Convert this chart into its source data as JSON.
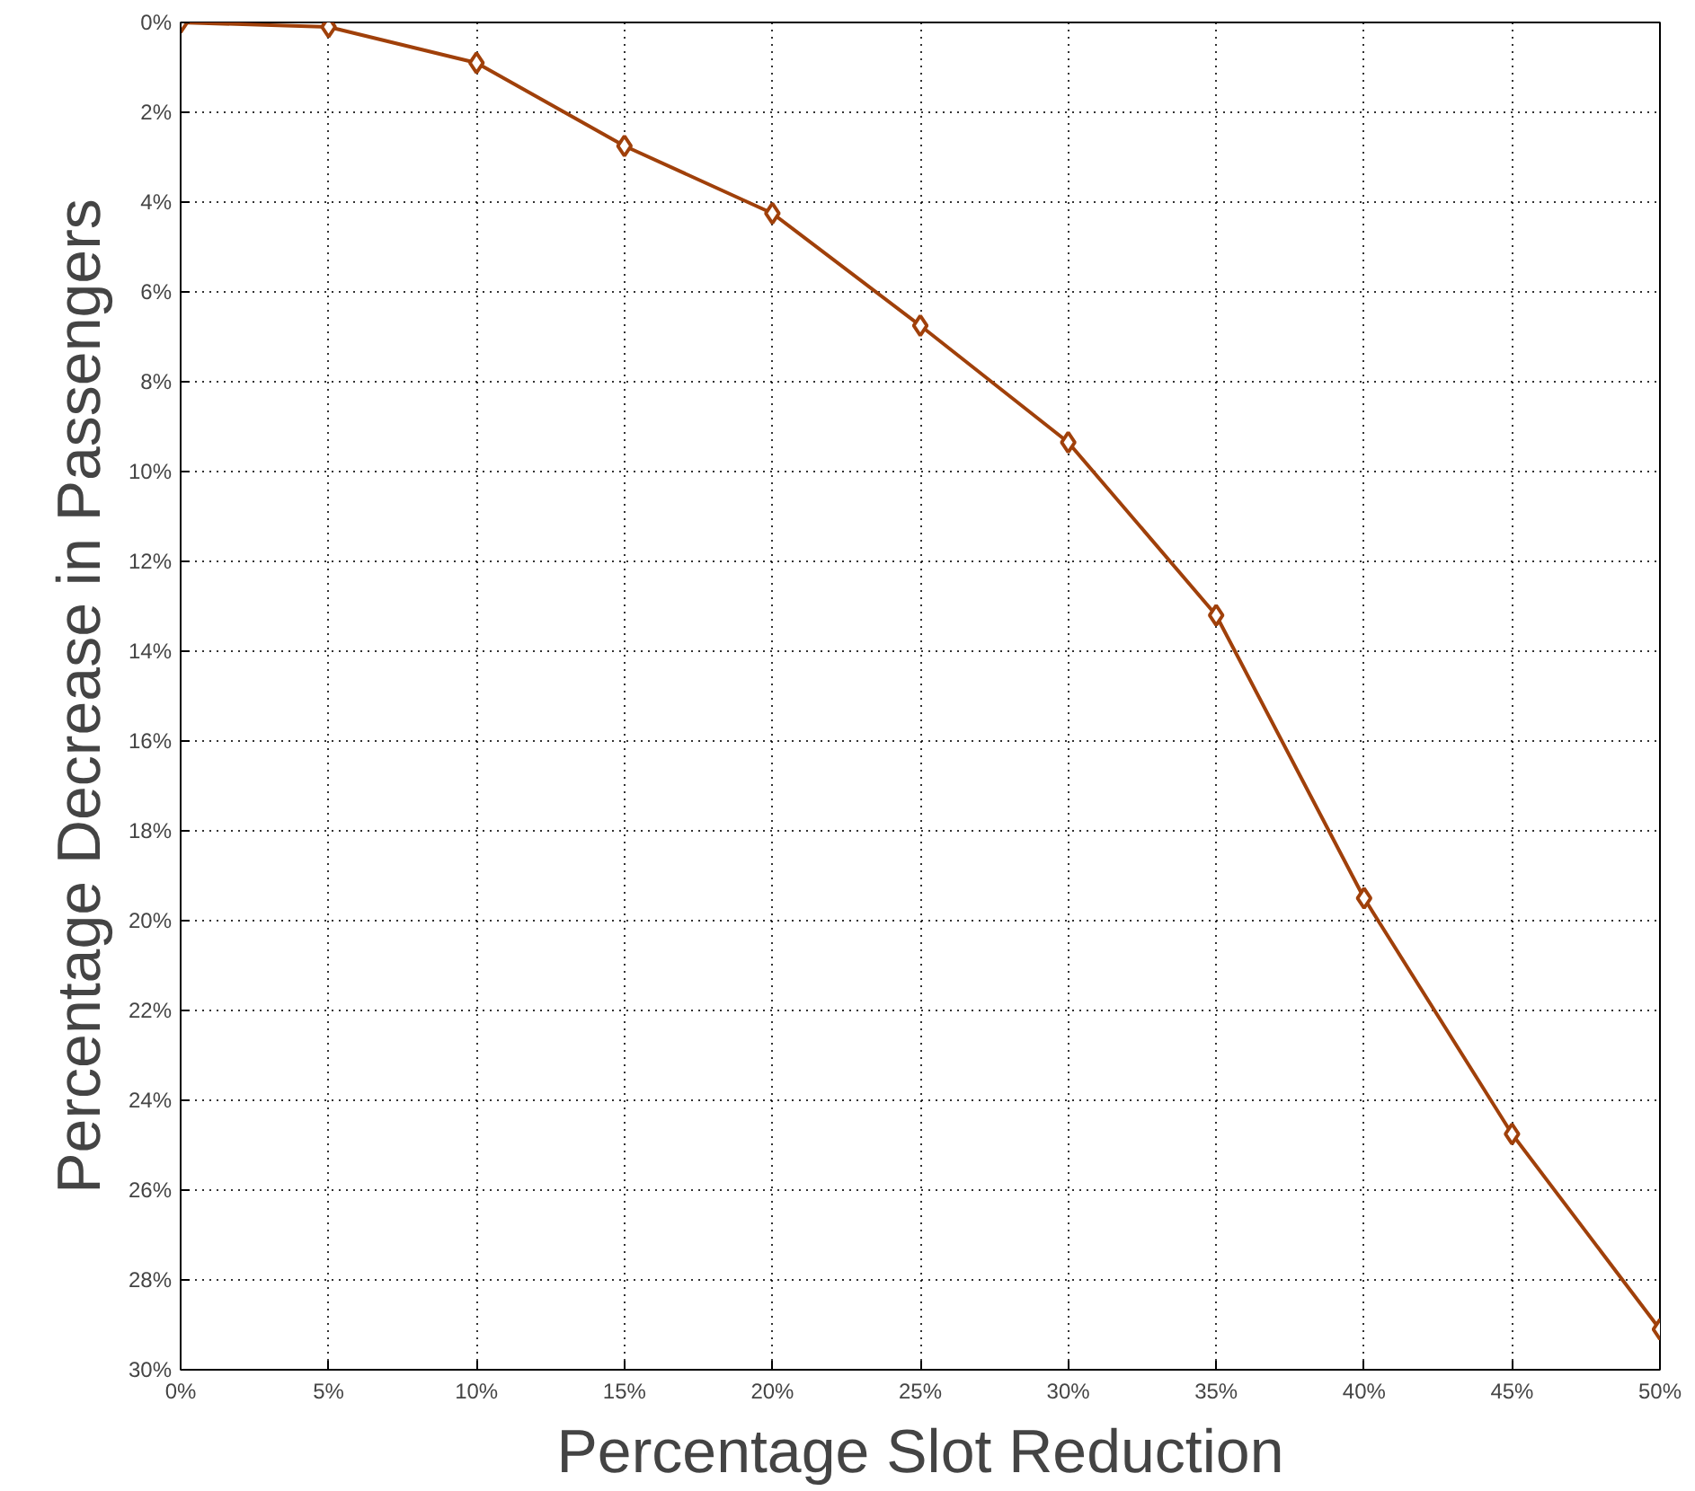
{
  "chart_data": {
    "type": "line",
    "xlabel": "Percentage Slot Reduction",
    "ylabel": "Percentage Decrease in Passengers",
    "x": [
      0,
      5,
      10,
      15,
      20,
      25,
      30,
      35,
      40,
      45,
      50
    ],
    "series": [
      {
        "color": "#a0400a",
        "values": [
          0,
          0.1,
          0.9,
          2.75,
          4.25,
          6.75,
          9.35,
          13.2,
          19.5,
          24.75,
          29.1
        ]
      }
    ],
    "xlim": [
      0,
      50
    ],
    "ylim": [
      30,
      0
    ],
    "xticks": [
      {
        "value": 0,
        "label": "0%"
      },
      {
        "value": 5,
        "label": "5%"
      },
      {
        "value": 10,
        "label": "10%"
      },
      {
        "value": 15,
        "label": "15%"
      },
      {
        "value": 20,
        "label": "20%"
      },
      {
        "value": 25,
        "label": "25%"
      },
      {
        "value": 30,
        "label": "30%"
      },
      {
        "value": 35,
        "label": "35%"
      },
      {
        "value": 40,
        "label": "40%"
      },
      {
        "value": 45,
        "label": "45%"
      },
      {
        "value": 50,
        "label": "50%"
      }
    ],
    "yticks": [
      {
        "value": 0,
        "label": "0%"
      },
      {
        "value": 2,
        "label": "2%"
      },
      {
        "value": 4,
        "label": "4%"
      },
      {
        "value": 6,
        "label": "6%"
      },
      {
        "value": 8,
        "label": "8%"
      },
      {
        "value": 10,
        "label": "10%"
      },
      {
        "value": 12,
        "label": "12%"
      },
      {
        "value": 14,
        "label": "14%"
      },
      {
        "value": 16,
        "label": "16%"
      },
      {
        "value": 18,
        "label": "18%"
      },
      {
        "value": 20,
        "label": "20%"
      },
      {
        "value": 22,
        "label": "22%"
      },
      {
        "value": 24,
        "label": "24%"
      },
      {
        "value": 26,
        "label": "26%"
      },
      {
        "value": 28,
        "label": "28%"
      },
      {
        "value": 30,
        "label": "30%"
      }
    ],
    "grid": true,
    "marker": "diamond",
    "line_style": "solid"
  }
}
